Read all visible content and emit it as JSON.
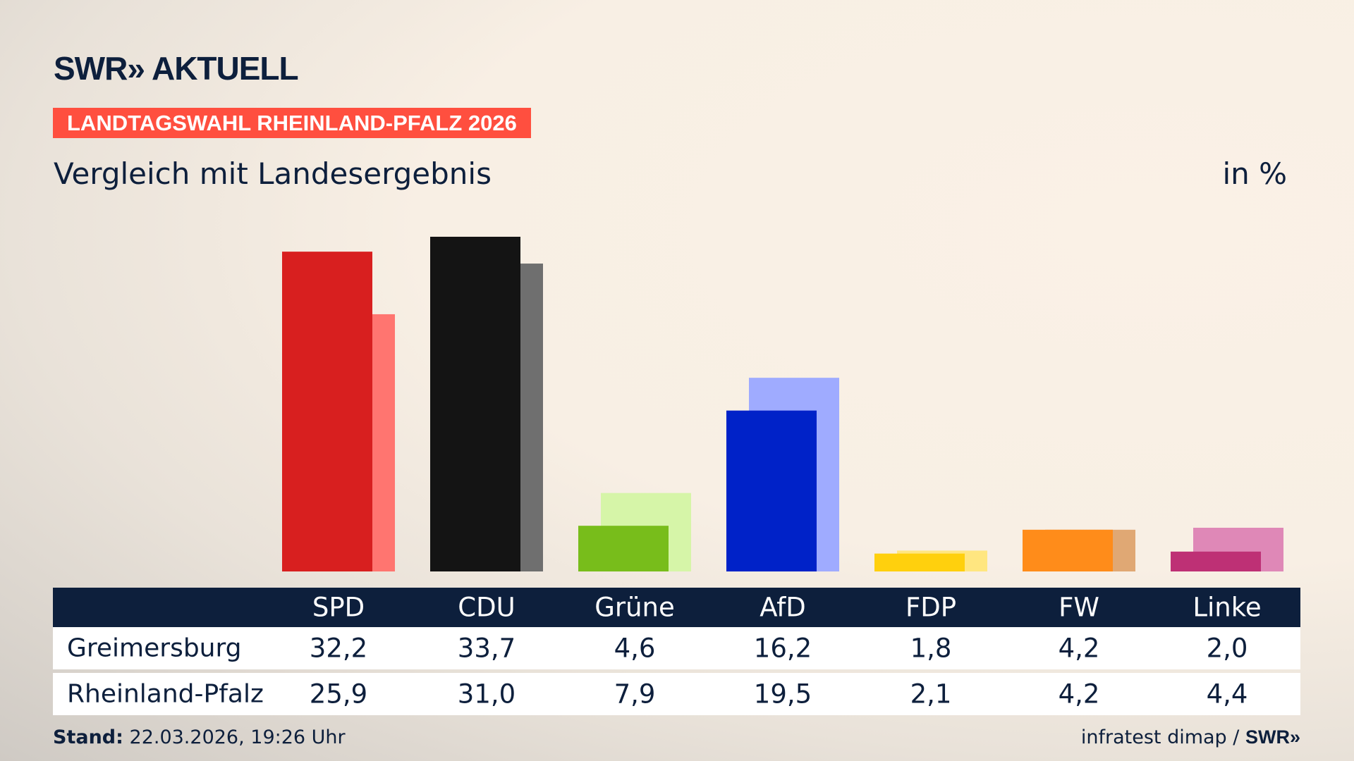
{
  "logo": "SWR» AKTUELL",
  "banner": "LANDTAGSWAHL RHEINLAND-PFALZ 2026",
  "subtitle": "Vergleich mit Landesergebnis",
  "unit": "in %",
  "chart_data": {
    "type": "bar",
    "categories": [
      "SPD",
      "CDU",
      "Grüne",
      "AfD",
      "FDP",
      "FW",
      "Linke"
    ],
    "series": [
      {
        "name": "Greimersburg",
        "values": [
          32.2,
          33.7,
          4.6,
          16.2,
          1.8,
          4.2,
          2.0
        ],
        "colors": [
          "#d81f1f",
          "#141414",
          "#78bd1b",
          "#0022c8",
          "#ffd00d",
          "#ff8c1a",
          "#be3075"
        ]
      },
      {
        "name": "Rheinland-Pfalz",
        "values": [
          25.9,
          31.0,
          7.9,
          19.5,
          2.1,
          4.2,
          4.4
        ],
        "colors": [
          "#ff7570",
          "#6f6f6f",
          "#d6f5a8",
          "#9fabff",
          "#ffe680",
          "#e0a874",
          "#df88b7"
        ]
      }
    ],
    "value_labels": [
      [
        "32,2",
        "33,7",
        "4,6",
        "16,2",
        "1,8",
        "4,2",
        "2,0"
      ],
      [
        "25,9",
        "31,0",
        "7,9",
        "19,5",
        "2,1",
        "4,2",
        "4,4"
      ]
    ],
    "ylim": [
      0,
      33.7
    ]
  },
  "footer": {
    "stand_label": "Stand:",
    "stand_value": "22.03.2026, 19:26 Uhr",
    "source": "infratest dimap /",
    "source_logo": "SWR»"
  }
}
